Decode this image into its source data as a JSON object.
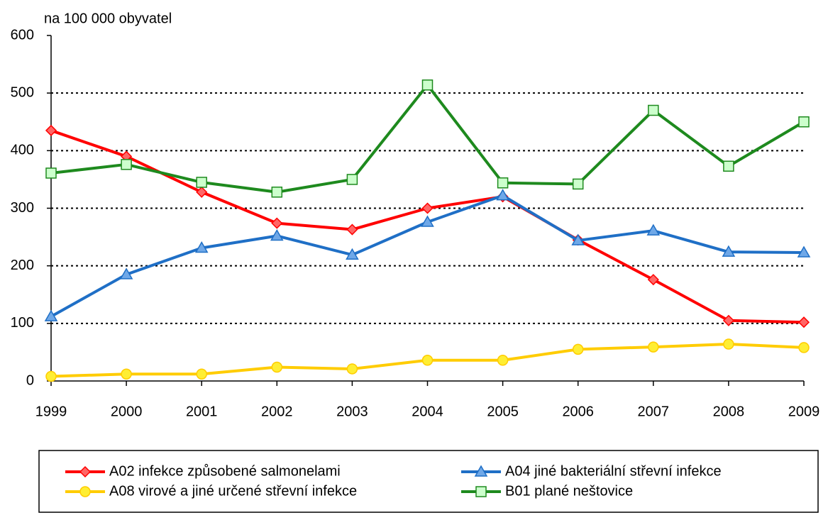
{
  "chart_data": {
    "type": "line",
    "y_label": "na 100 000 obyvatel",
    "categories": [
      "1999",
      "2000",
      "2001",
      "2002",
      "2003",
      "2004",
      "2005",
      "2006",
      "2007",
      "2008",
      "2009"
    ],
    "series": [
      {
        "name": "A02 infekce způsobené salmonelami",
        "color": "#ff0000",
        "fill": "#ff6666",
        "marker": "diamond",
        "values": [
          435,
          390,
          328,
          274,
          263,
          300,
          320,
          245,
          176,
          105,
          102
        ]
      },
      {
        "name": "A04 jiné bakteriální střevní infekce",
        "color": "#1f6fc6",
        "fill": "#6fa8e8",
        "marker": "triangle",
        "values": [
          112,
          185,
          231,
          252,
          219,
          276,
          322,
          244,
          261,
          224,
          223
        ]
      },
      {
        "name": "A08 virové a jiné určené střevní infekce",
        "color": "#ffcc00",
        "fill": "#ffee33",
        "marker": "circle",
        "values": [
          8,
          12,
          12,
          24,
          21,
          36,
          36,
          55,
          59,
          64,
          58
        ]
      },
      {
        "name": "B01 plané neštovice",
        "color": "#1e8a1e",
        "fill": "#ccffcc",
        "marker": "square",
        "values": [
          361,
          376,
          345,
          328,
          350,
          514,
          344,
          342,
          470,
          373,
          450
        ]
      }
    ],
    "ylim": [
      0,
      600
    ],
    "yticks": [
      0,
      100,
      200,
      300,
      400,
      500,
      600
    ],
    "grid": true
  }
}
